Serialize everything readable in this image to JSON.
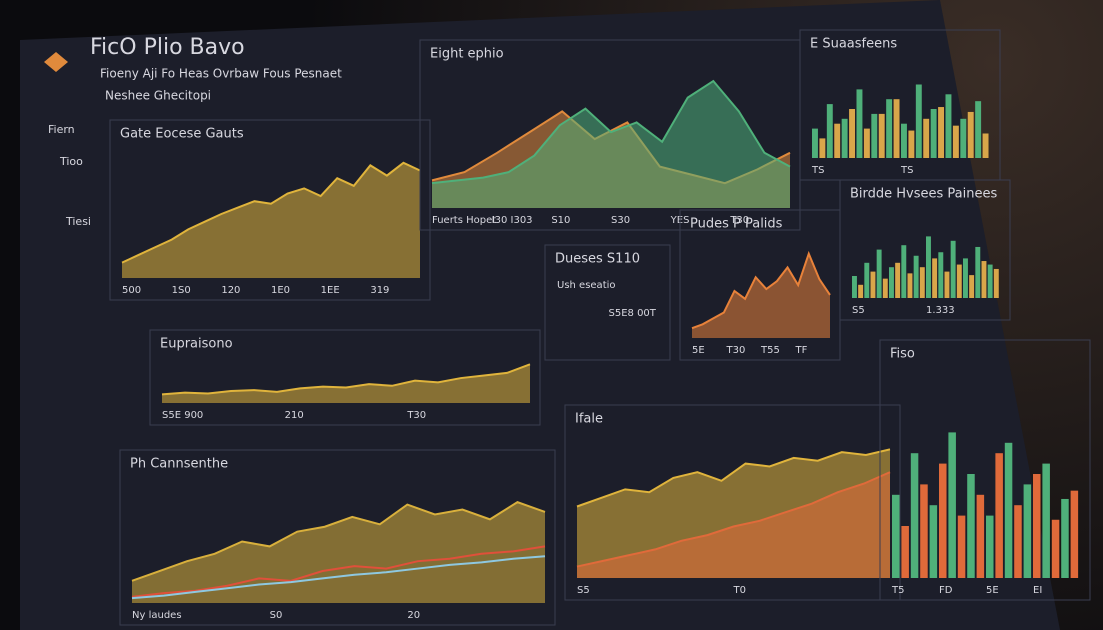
{
  "header": {
    "title": "FicO Plio Bavo",
    "subtitle": [
      "Fioeny Aji Fo Heas Ovrbaw Fous Pesnaet",
      "Neshee Ghecitopi"
    ]
  },
  "sidebar": [
    "Fiern",
    "Tioo",
    "Tiesi"
  ],
  "panels": [
    {
      "title": "Gate Eocese Gauts",
      "labels": [
        "500",
        "1S0",
        "120",
        "1E0",
        "1EE",
        "319"
      ],
      "series": [
        {
          "type": "area",
          "color": "#e0b43c",
          "values": [
            12,
            18,
            24,
            30,
            38,
            44,
            50,
            55,
            60,
            58,
            66,
            70,
            64,
            78,
            72,
            88,
            80,
            90,
            84
          ]
        }
      ]
    },
    {
      "title": "Eight ephio",
      "labels": [
        "Fuerts Hopet",
        "I30 I303",
        "S10",
        "S30",
        "YES",
        "T30"
      ],
      "series": [
        {
          "type": "area",
          "color": "#e08a3c",
          "values": [
            20,
            26,
            40,
            55,
            70,
            50,
            62,
            30,
            24,
            18,
            28,
            40
          ]
        },
        {
          "type": "area",
          "color": "#4fb07a",
          "values": [
            18,
            20,
            22,
            26,
            38,
            60,
            72,
            55,
            62,
            48,
            80,
            92,
            70,
            40,
            30
          ]
        }
      ]
    },
    {
      "title": "E Suaasfeens",
      "labels": [
        "TS",
        "TS"
      ],
      "series": [
        {
          "type": "bars",
          "color": "#4fb07a",
          "values": [
            30,
            55,
            40,
            70,
            45,
            60,
            35,
            75,
            50,
            65,
            40,
            58
          ]
        },
        {
          "type": "bars",
          "color": "#d9a64a",
          "values": [
            20,
            35,
            50,
            30,
            45,
            60,
            28,
            40,
            52,
            33,
            47,
            25
          ]
        }
      ]
    },
    {
      "title": "Dueses S110",
      "labels": [
        "Ush eseatio",
        "S5E8 00T"
      ],
      "series": []
    },
    {
      "title": "Pudes P Palids",
      "labels": [
        "5E",
        "T30",
        "T55",
        "TF"
      ],
      "series": [
        {
          "type": "area",
          "color": "#e8823a",
          "values": [
            10,
            14,
            20,
            26,
            48,
            40,
            62,
            50,
            58,
            72,
            54,
            86,
            60,
            44
          ]
        }
      ]
    },
    {
      "title": "Birdde Hvsees Painees",
      "labels": [
        "S5",
        "1.333"
      ],
      "series": [
        {
          "type": "bars",
          "color": "#4fb07a",
          "values": [
            25,
            40,
            55,
            35,
            60,
            48,
            70,
            52,
            65,
            45,
            58,
            38
          ]
        },
        {
          "type": "bars",
          "color": "#d9a64a",
          "values": [
            15,
            30,
            22,
            40,
            28,
            35,
            45,
            30,
            38,
            26,
            42,
            33
          ]
        }
      ]
    },
    {
      "title": "Eupraisono",
      "labels": [
        "S5E 900",
        "210",
        "T30"
      ],
      "series": [
        {
          "type": "area",
          "color": "#e0b43c",
          "values": [
            20,
            24,
            22,
            28,
            30,
            26,
            34,
            38,
            36,
            44,
            40,
            52,
            48,
            58,
            64,
            70,
            90
          ]
        }
      ]
    },
    {
      "title": "Ph Cannsenthe",
      "labels": [
        "Ny laudes",
        "S0",
        "20"
      ],
      "series": [
        {
          "type": "area",
          "color": "#d9b03c",
          "values": [
            18,
            26,
            34,
            40,
            50,
            46,
            58,
            62,
            70,
            64,
            80,
            72,
            76,
            68,
            82,
            74
          ]
        },
        {
          "type": "line",
          "color": "#e0503a",
          "values": [
            5,
            8,
            10,
            14,
            20,
            18,
            26,
            30,
            28,
            34,
            36,
            40,
            42,
            46
          ]
        },
        {
          "type": "line",
          "color": "#8ec8e0",
          "values": [
            4,
            6,
            9,
            12,
            15,
            17,
            20,
            23,
            25,
            28,
            31,
            33,
            36,
            38
          ]
        }
      ]
    },
    {
      "title": "Ifale",
      "labels": [
        "S5",
        "T0"
      ],
      "series": [
        {
          "type": "area",
          "color": "#e0b43c",
          "values": [
            50,
            56,
            62,
            60,
            70,
            74,
            68,
            80,
            78,
            84,
            82,
            88,
            86,
            90
          ]
        },
        {
          "type": "area",
          "color": "#e06a3a",
          "values": [
            8,
            12,
            16,
            20,
            26,
            30,
            36,
            40,
            46,
            52,
            60,
            66,
            74
          ]
        }
      ]
    },
    {
      "title": "Fiso",
      "labels": [
        "T5",
        "FD",
        "5E",
        "EI"
      ],
      "series": [
        {
          "type": "bars",
          "color": "#4fb07a",
          "values": [
            40,
            60,
            35,
            70,
            50,
            30,
            65,
            45,
            55,
            38
          ]
        },
        {
          "type": "bars",
          "color": "#e06a3a",
          "values": [
            25,
            45,
            55,
            30,
            40,
            60,
            35,
            50,
            28,
            42
          ]
        }
      ]
    }
  ]
}
